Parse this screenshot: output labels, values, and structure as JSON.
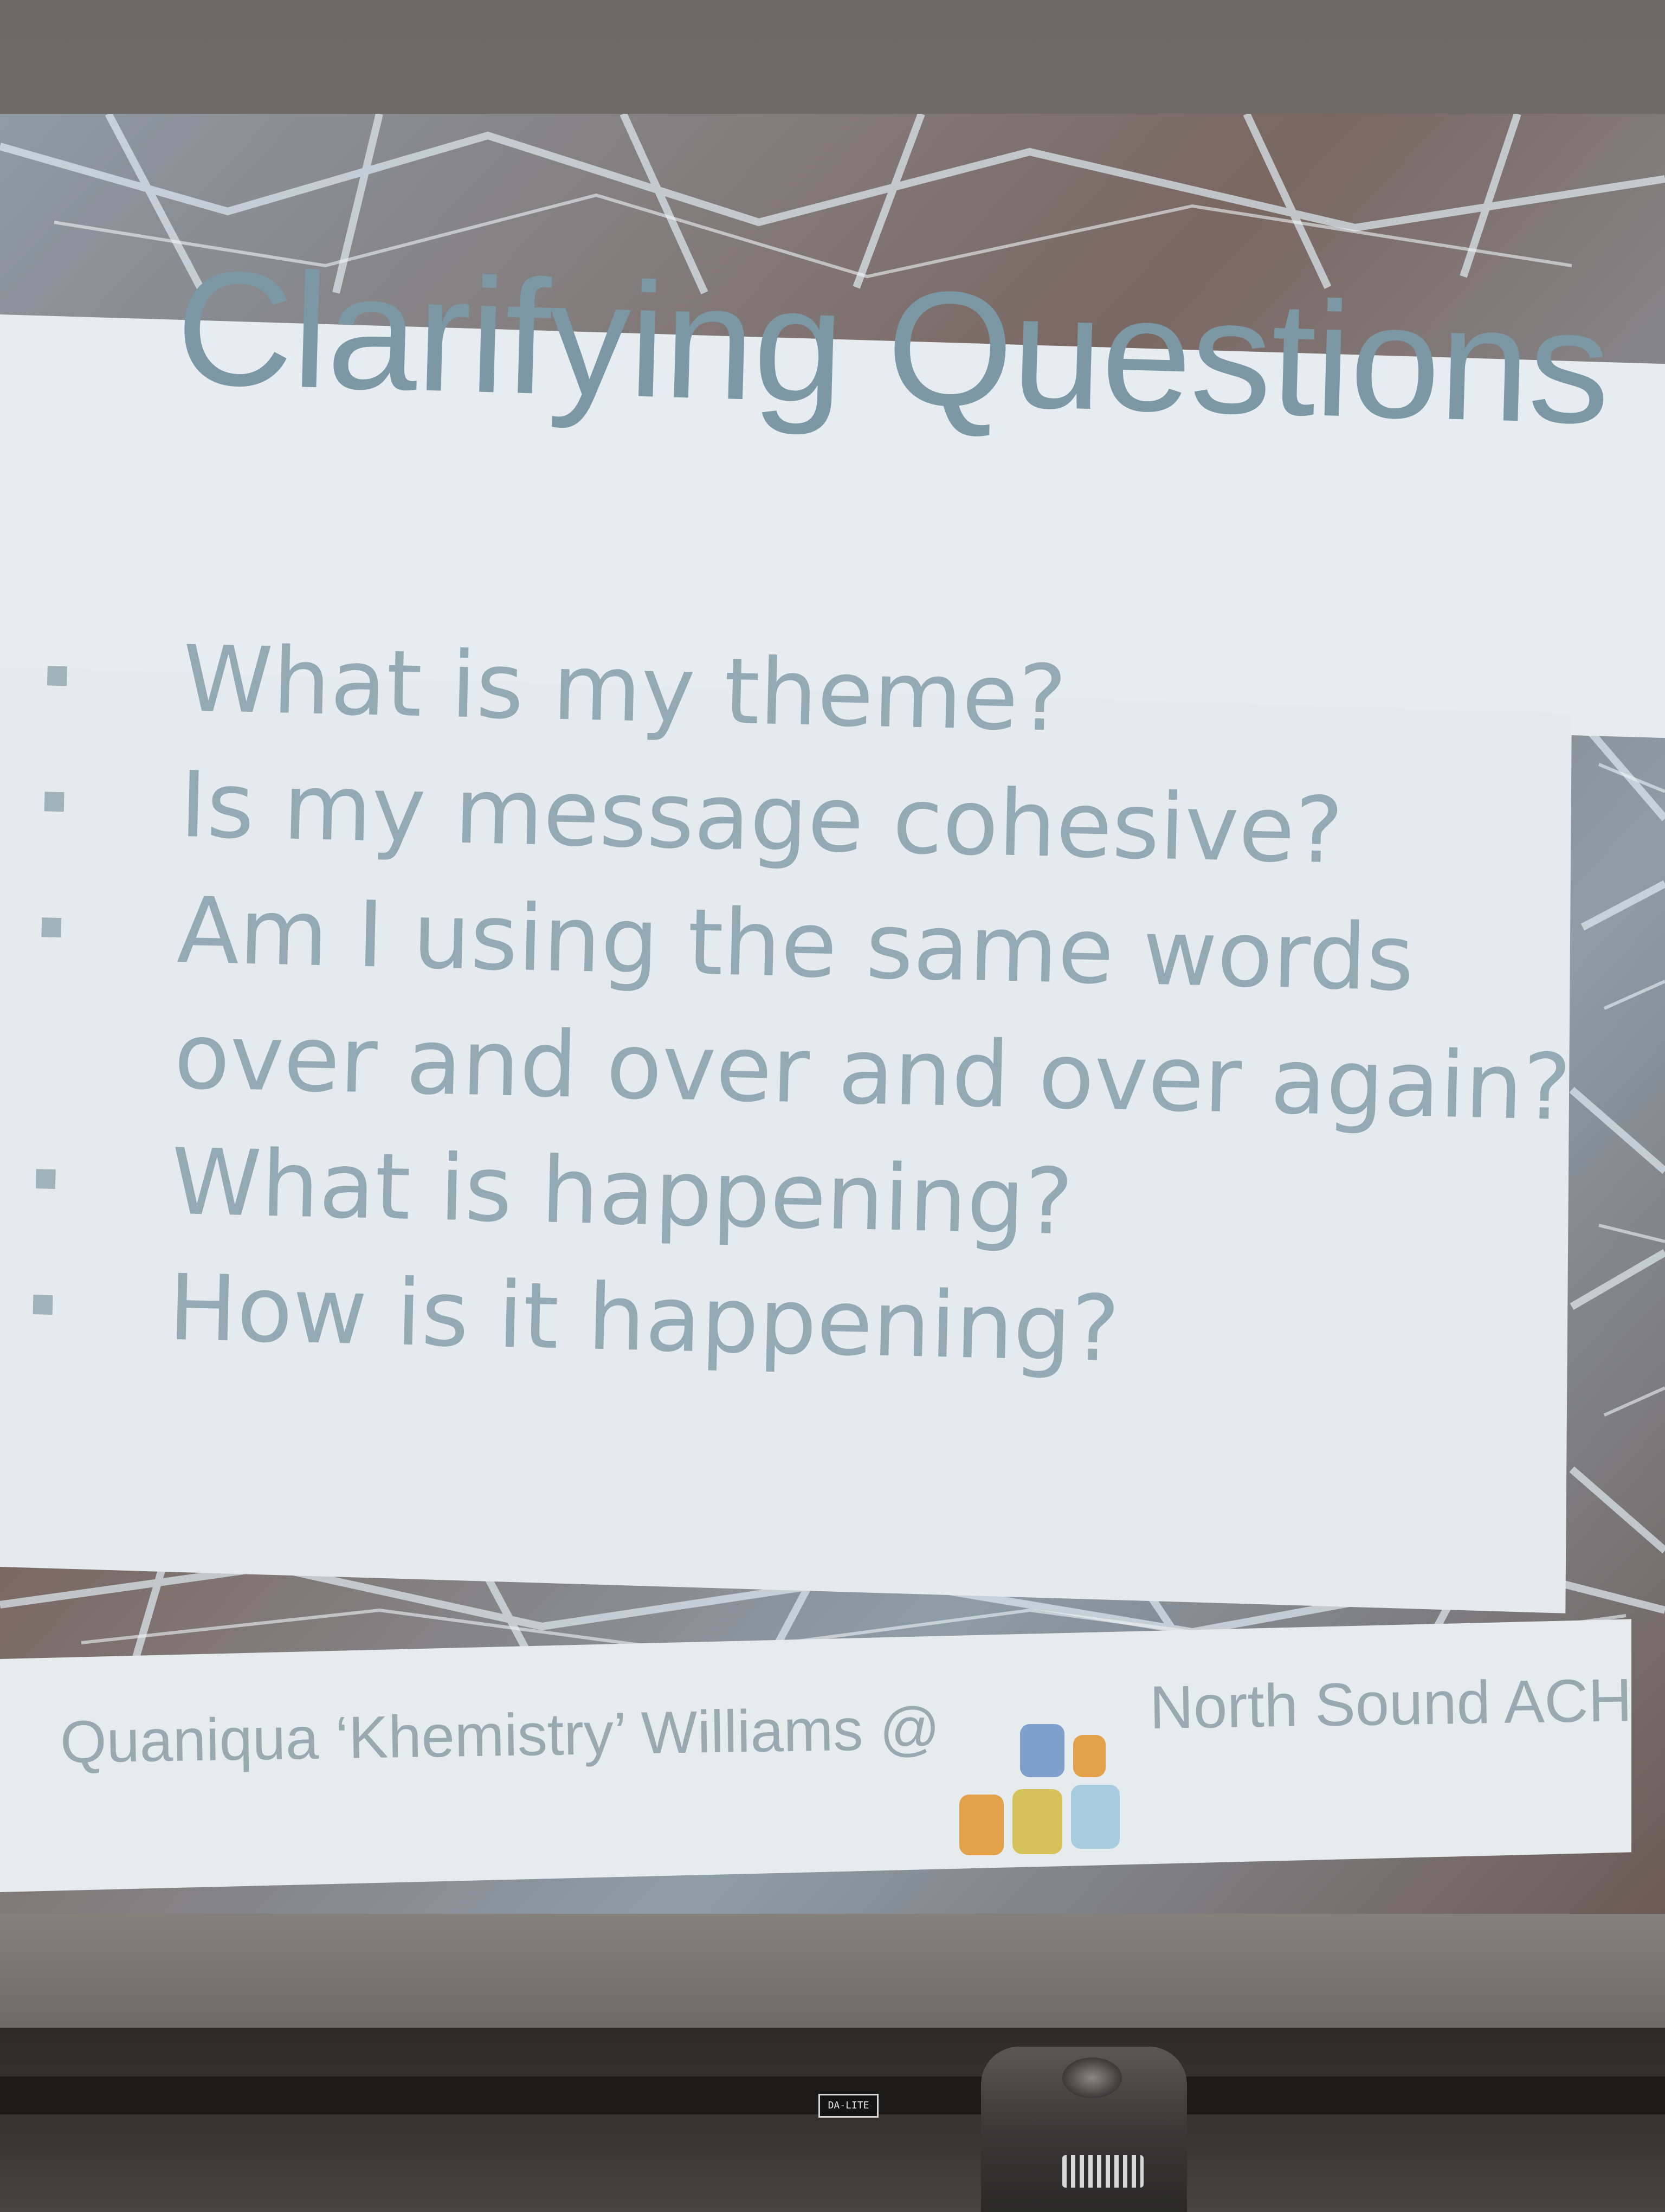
{
  "slide": {
    "title": "Clarifying Questions",
    "bullets": [
      "What is my theme?",
      "Is my message cohesive?",
      "Am I using the same words",
      "over and over and over again?",
      "What is happening?",
      "How is it happening?"
    ],
    "footer": {
      "author": "Quaniqua ‘Khemistry’ Williams @",
      "organization": "North Sound ACH"
    }
  },
  "projector": {
    "brand": "DA-LITE"
  },
  "colors": {
    "title_text": "#7b98a4",
    "bullet_text": "#93aab4",
    "panel_background": "#e5ebee",
    "logo_blue": "#7f9fcc",
    "logo_orange": "#e3a24a",
    "logo_yellow": "#d6c25a",
    "logo_light_blue": "#a9cbe0"
  },
  "icons": [
    "north-sound-ach-logo-icon"
  ]
}
